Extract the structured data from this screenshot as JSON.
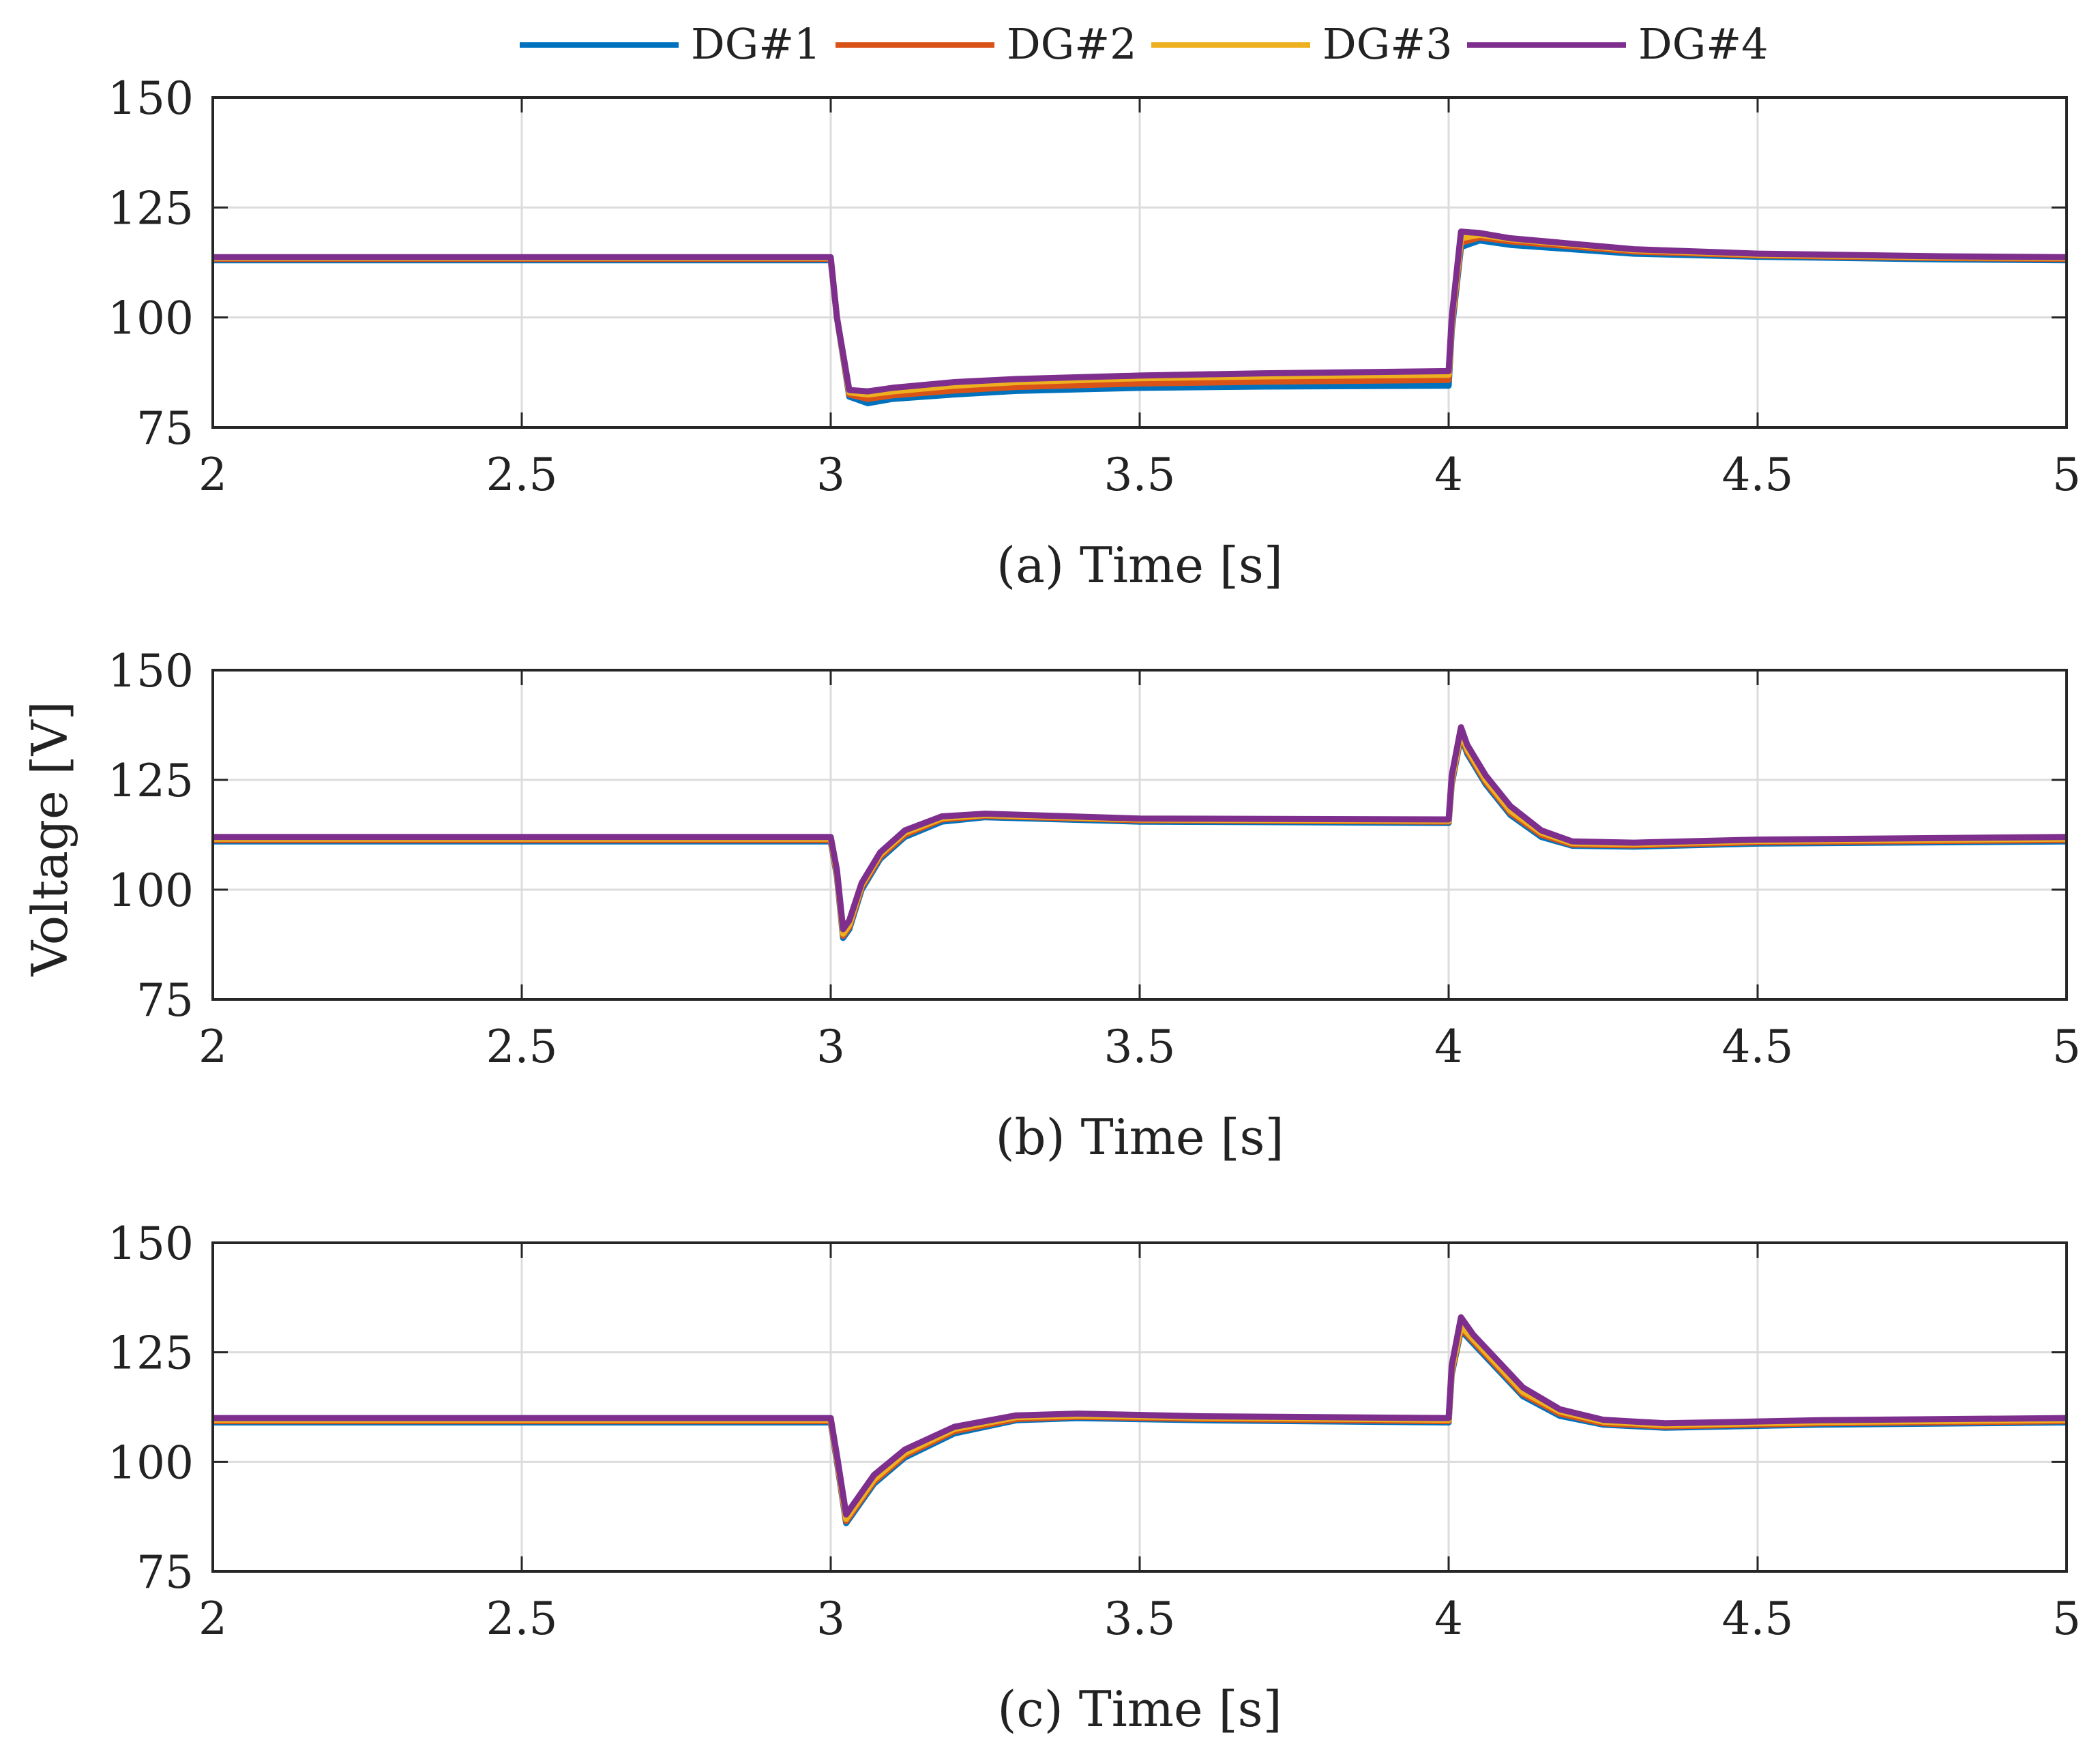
{
  "legend": [
    {
      "name": "DG#1",
      "color": "#0072BD"
    },
    {
      "name": "DG#2",
      "color": "#D95319"
    },
    {
      "name": "DG#3",
      "color": "#EDB120"
    },
    {
      "name": "DG#4",
      "color": "#7E2F8E"
    }
  ],
  "ylabel": "Voltage [V]",
  "chart_data": [
    {
      "type": "line",
      "title": "",
      "xlabel": "(a) Time [s]",
      "ylabel": "Voltage [V]",
      "xlim": [
        2,
        5
      ],
      "ylim": [
        75,
        150
      ],
      "xticks": [
        "2",
        "2.5",
        "3",
        "3.5",
        "4",
        "4.5",
        "5"
      ],
      "yticks": [
        "75",
        "100",
        "125",
        "150"
      ],
      "grid": true,
      "series": [
        {
          "name": "DG#1",
          "x": [
            2,
            3.0,
            3.01,
            3.03,
            3.06,
            3.1,
            3.2,
            3.3,
            3.5,
            3.7,
            4.0,
            4.005,
            4.02,
            4.05,
            4.1,
            4.3,
            4.5,
            4.8,
            5
          ],
          "y": [
            113,
            113,
            100,
            82,
            80.5,
            81.5,
            82.5,
            83.3,
            84,
            84.3,
            84.5,
            97,
            116,
            117.5,
            116.5,
            114.5,
            113.8,
            113.2,
            113
          ]
        },
        {
          "name": "DG#2",
          "x": [
            2,
            3.0,
            3.01,
            3.03,
            3.06,
            3.1,
            3.2,
            3.3,
            3.5,
            3.7,
            4.0,
            4.005,
            4.02,
            4.05,
            4.1,
            4.3,
            4.5,
            4.8,
            5
          ],
          "y": [
            113.3,
            113.3,
            100,
            82.5,
            81.5,
            82.3,
            83.4,
            84.2,
            85,
            85.4,
            85.8,
            98,
            117,
            118.2,
            117.3,
            115,
            114.1,
            113.5,
            113.3
          ]
        },
        {
          "name": "DG#3",
          "x": [
            2,
            3.0,
            3.01,
            3.03,
            3.06,
            3.1,
            3.2,
            3.3,
            3.5,
            3.7,
            4.0,
            4.005,
            4.02,
            4.05,
            4.1,
            4.3,
            4.5,
            4.8,
            5
          ],
          "y": [
            113.5,
            113.5,
            100,
            83,
            82.5,
            83.2,
            84.5,
            85.3,
            86.2,
            86.6,
            87,
            99,
            118,
            118.8,
            117.8,
            115.3,
            114.3,
            113.7,
            113.5
          ]
        },
        {
          "name": "DG#4",
          "x": [
            2,
            3.0,
            3.01,
            3.03,
            3.06,
            3.1,
            3.2,
            3.3,
            3.5,
            3.7,
            4.0,
            4.005,
            4.02,
            4.05,
            4.1,
            4.3,
            4.5,
            4.8,
            5
          ],
          "y": [
            113.7,
            113.7,
            100,
            83.5,
            83.2,
            84,
            85.3,
            86,
            86.8,
            87.3,
            87.8,
            100,
            119.5,
            119.2,
            118,
            115.5,
            114.5,
            113.9,
            113.7
          ]
        }
      ]
    },
    {
      "type": "line",
      "title": "",
      "xlabel": "(b) Time [s]",
      "ylabel": "Voltage [V]",
      "xlim": [
        2,
        5
      ],
      "ylim": [
        75,
        150
      ],
      "xticks": [
        "2",
        "2.5",
        "3",
        "3.5",
        "4",
        "4.5",
        "5"
      ],
      "yticks": [
        "75",
        "100",
        "125",
        "150"
      ],
      "grid": true,
      "series": [
        {
          "name": "DG#1",
          "x": [
            2,
            3.0,
            3.01,
            3.02,
            3.03,
            3.05,
            3.08,
            3.12,
            3.18,
            3.25,
            3.5,
            4.0,
            4.005,
            4.02,
            4.03,
            4.06,
            4.1,
            4.15,
            4.2,
            4.3,
            4.5,
            5
          ],
          "y": [
            111,
            111,
            103,
            89,
            91,
            100,
            107,
            112,
            115.5,
            116.5,
            115.5,
            115.2,
            124,
            135,
            131,
            124,
            117,
            112,
            110,
            109.8,
            110.5,
            111
          ]
        },
        {
          "name": "DG#2",
          "x": [
            2,
            3.0,
            3.01,
            3.02,
            3.03,
            3.05,
            3.08,
            3.12,
            3.18,
            3.25,
            3.5,
            4.0,
            4.005,
            4.02,
            4.03,
            4.06,
            4.1,
            4.15,
            4.2,
            4.3,
            4.5,
            5
          ],
          "y": [
            111.3,
            111.3,
            103.5,
            89.5,
            91.5,
            100.5,
            107.5,
            112.5,
            116,
            116.8,
            115.8,
            115.5,
            124.5,
            135.5,
            131.5,
            124.5,
            117.5,
            112.5,
            110.3,
            110.1,
            110.8,
            111.3
          ]
        },
        {
          "name": "DG#3",
          "x": [
            2,
            3.0,
            3.01,
            3.02,
            3.03,
            3.05,
            3.08,
            3.12,
            3.18,
            3.25,
            3.5,
            4.0,
            4.005,
            4.02,
            4.03,
            4.06,
            4.1,
            4.15,
            4.2,
            4.3,
            4.5,
            5
          ],
          "y": [
            111.6,
            111.6,
            104,
            90,
            92,
            101,
            108,
            113,
            116.3,
            117,
            116,
            115.7,
            125,
            136,
            132,
            125,
            118,
            113,
            110.6,
            110.4,
            111.1,
            111.6
          ]
        },
        {
          "name": "DG#4",
          "x": [
            2,
            3.0,
            3.01,
            3.02,
            3.03,
            3.05,
            3.08,
            3.12,
            3.18,
            3.25,
            3.5,
            4.0,
            4.005,
            4.02,
            4.03,
            4.06,
            4.1,
            4.15,
            4.2,
            4.3,
            4.5,
            5
          ],
          "y": [
            112,
            112,
            104.5,
            91,
            93,
            101.5,
            108.5,
            113.5,
            116.7,
            117.3,
            116.2,
            116,
            126,
            137,
            133,
            126,
            119,
            113.5,
            111,
            110.7,
            111.4,
            112
          ]
        }
      ]
    },
    {
      "type": "line",
      "title": "",
      "xlabel": "(c) Time [s]",
      "ylabel": "Voltage [V]",
      "xlim": [
        2,
        5
      ],
      "ylim": [
        75,
        150
      ],
      "xticks": [
        "2",
        "2.5",
        "3",
        "3.5",
        "4",
        "4.5",
        "5"
      ],
      "yticks": [
        "75",
        "100",
        "125",
        "150"
      ],
      "grid": true,
      "series": [
        {
          "name": "DG#1",
          "x": [
            2,
            3.0,
            3.01,
            3.025,
            3.04,
            3.07,
            3.12,
            3.2,
            3.3,
            3.4,
            3.6,
            4.0,
            4.005,
            4.02,
            4.04,
            4.08,
            4.12,
            4.18,
            4.25,
            4.35,
            4.6,
            5
          ],
          "y": [
            109,
            109,
            100,
            86,
            89,
            95,
            101,
            106.5,
            109.5,
            110,
            109.5,
            109,
            120,
            130,
            127,
            121,
            115,
            110.5,
            108.5,
            107.8,
            108.5,
            109
          ]
        },
        {
          "name": "DG#2",
          "x": [
            2,
            3.0,
            3.01,
            3.025,
            3.04,
            3.07,
            3.12,
            3.2,
            3.3,
            3.4,
            3.6,
            4.0,
            4.005,
            4.02,
            4.04,
            4.08,
            4.12,
            4.18,
            4.25,
            4.35,
            4.6,
            5
          ],
          "y": [
            109.3,
            109.3,
            100.5,
            86.5,
            89.5,
            95.5,
            101.5,
            107,
            109.8,
            110.3,
            109.8,
            109.3,
            120.5,
            130.5,
            127.5,
            121.5,
            115.5,
            111,
            108.8,
            108.1,
            108.8,
            109.3
          ]
        },
        {
          "name": "DG#3",
          "x": [
            2,
            3.0,
            3.01,
            3.025,
            3.04,
            3.07,
            3.12,
            3.2,
            3.3,
            3.4,
            3.6,
            4.0,
            4.005,
            4.02,
            4.04,
            4.08,
            4.12,
            4.18,
            4.25,
            4.35,
            4.6,
            5
          ],
          "y": [
            109.6,
            109.6,
            101,
            87,
            90,
            96,
            102,
            107.5,
            110.2,
            110.6,
            110.1,
            109.6,
            121,
            131,
            128,
            122,
            116,
            111.5,
            109.2,
            108.4,
            109.1,
            109.6
          ]
        },
        {
          "name": "DG#4",
          "x": [
            2,
            3.0,
            3.01,
            3.025,
            3.04,
            3.07,
            3.12,
            3.2,
            3.3,
            3.4,
            3.6,
            4.0,
            4.005,
            4.02,
            4.04,
            4.08,
            4.12,
            4.18,
            4.25,
            4.35,
            4.6,
            5
          ],
          "y": [
            110,
            110,
            101.5,
            88,
            91,
            97,
            102.8,
            108,
            110.6,
            111,
            110.4,
            110,
            122,
            133,
            129,
            123,
            117,
            112,
            109.6,
            108.8,
            109.5,
            110
          ]
        }
      ]
    }
  ]
}
